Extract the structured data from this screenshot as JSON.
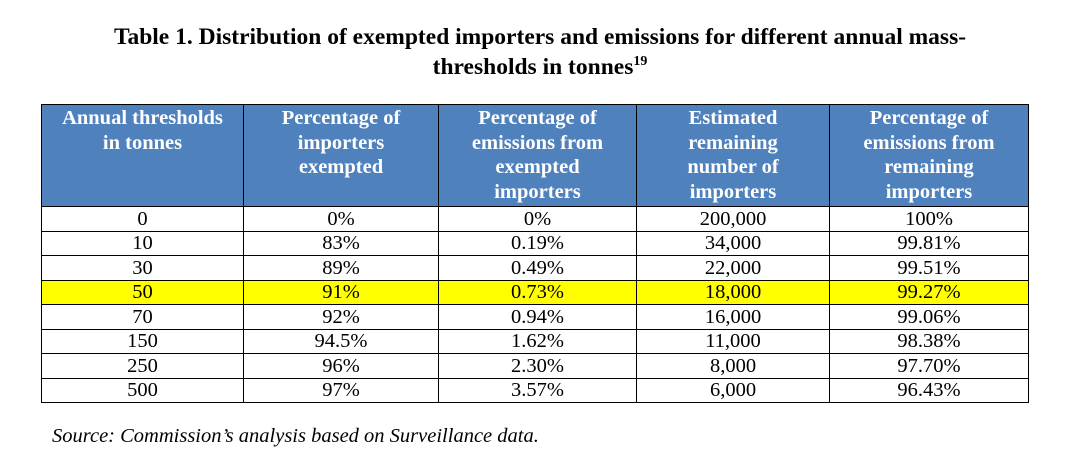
{
  "caption": {
    "line1": "Table 1. Distribution of exempted importers and emissions for different annual mass-",
    "line2": "thresholds in tonnes",
    "footnote": "19"
  },
  "table": {
    "headers": [
      {
        "line1": "Annual thresholds",
        "line2": "in tonnes"
      },
      {
        "line1": "Percentage of",
        "line2": "importers",
        "line3": "exempted"
      },
      {
        "line1": "Percentage of",
        "line2": "emissions from",
        "line3": "exempted",
        "line4": "importers"
      },
      {
        "line1": "Estimated",
        "line2": "remaining",
        "line3": "number of",
        "line4": "importers"
      },
      {
        "line1": "Percentage of",
        "line2": "emissions from",
        "line3": "remaining",
        "line4": "importers"
      }
    ],
    "rows": [
      [
        "0",
        "0%",
        "0%",
        "200,000",
        "100%"
      ],
      [
        "10",
        "83%",
        "0.19%",
        "34,000",
        "99.81%"
      ],
      [
        "30",
        "89%",
        "0.49%",
        "22,000",
        "99.51%"
      ],
      [
        "50",
        "91%",
        "0.73%",
        "18,000",
        "99.27%"
      ],
      [
        "70",
        "92%",
        "0.94%",
        "16,000",
        "99.06%"
      ],
      [
        "150",
        "94.5%",
        "1.62%",
        "11,000",
        "98.38%"
      ],
      [
        "250",
        "96%",
        "2.30%",
        "8,000",
        "97.70%"
      ],
      [
        "500",
        "97%",
        "3.57%",
        "6,000",
        "96.43%"
      ]
    ],
    "highlighted_row": 3
  },
  "source": "Source: Commission’s analysis based on Surveillance data.",
  "colors": {
    "header_bg": "#4f81bd",
    "header_text": "#ffffff",
    "highlight": "#ffff00"
  }
}
